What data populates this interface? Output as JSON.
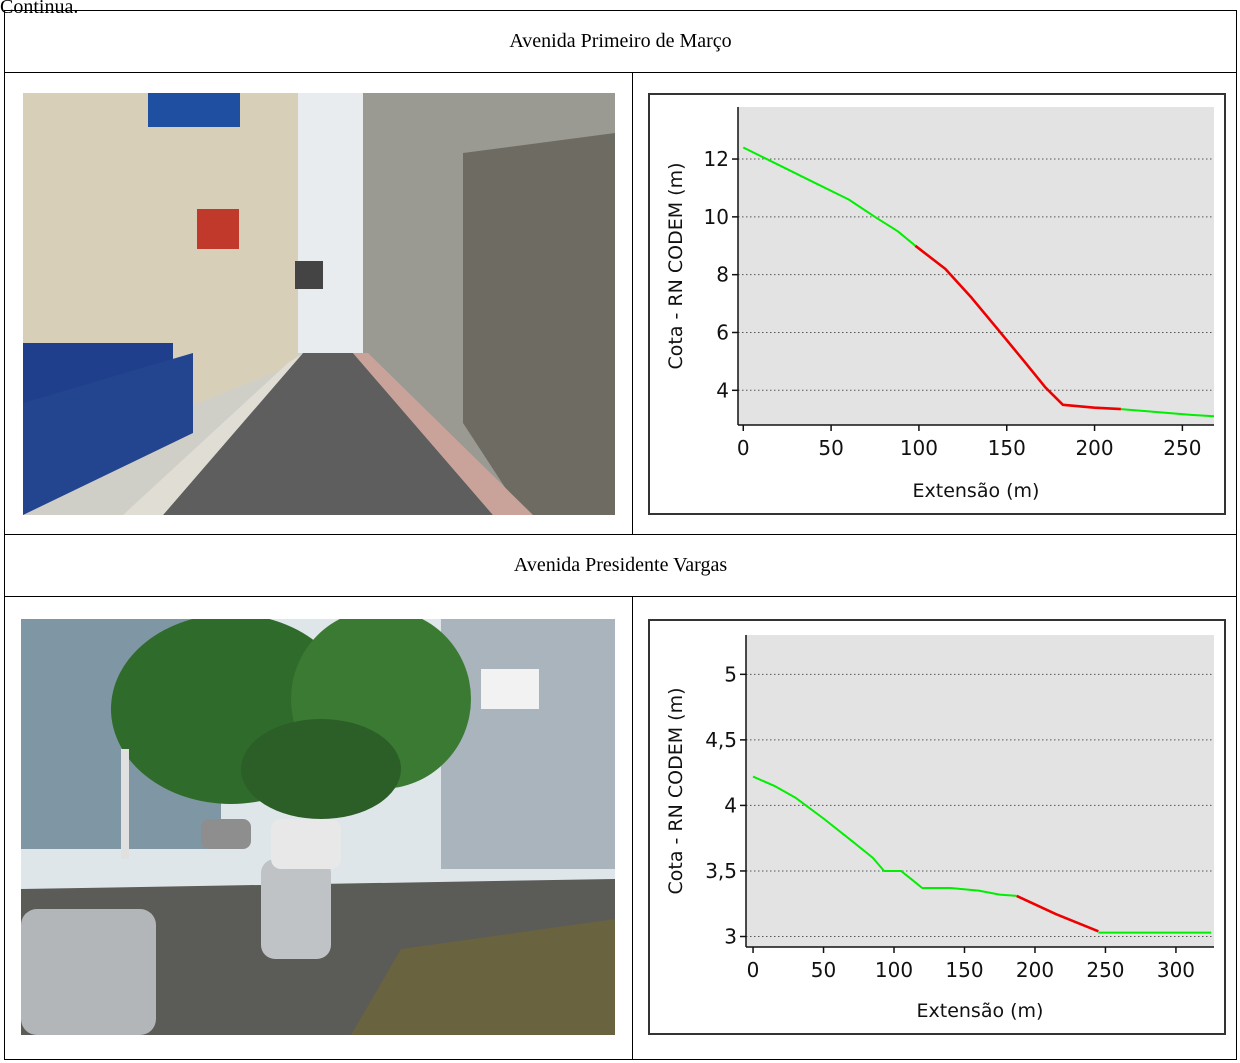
{
  "fragment_label": "Continua.",
  "rows": [
    {
      "title": "Avenida Primeiro de Março",
      "photo": {
        "kind": "narrow-street",
        "icon": "street-photo-icon"
      },
      "chart_data": {
        "type": "line",
        "xlabel": "Extensão (m)",
        "ylabel": "Cota - RN CODEM (m)",
        "xlim": [
          -3,
          268
        ],
        "ylim": [
          2.8,
          13.8
        ],
        "xticks": [
          0,
          50,
          100,
          150,
          200,
          250
        ],
        "xtick_labels": [
          "0",
          "50",
          "100",
          "150",
          "200",
          "250"
        ],
        "yticks": [
          4,
          6,
          8,
          10,
          12
        ],
        "ytick_labels": [
          "4",
          "6",
          "8",
          "10",
          "12"
        ],
        "grid": "horizontal-dotted",
        "background": "#e3e3e3",
        "segments": [
          {
            "color": "#00ee00",
            "points": [
              [
                0,
                12.4
              ],
              [
                20,
                11.8
              ],
              [
                40,
                11.2
              ],
              [
                60,
                10.6
              ],
              [
                75,
                10.0
              ],
              [
                88,
                9.5
              ],
              [
                98,
                9.0
              ]
            ]
          },
          {
            "color": "#ee0000",
            "points": [
              [
                98,
                9.0
              ],
              [
                115,
                8.2
              ],
              [
                130,
                7.2
              ],
              [
                145,
                6.1
              ],
              [
                160,
                5.0
              ],
              [
                172,
                4.1
              ],
              [
                182,
                3.5
              ],
              [
                200,
                3.4
              ],
              [
                215,
                3.35
              ]
            ]
          },
          {
            "color": "#00ee00",
            "points": [
              [
                215,
                3.35
              ],
              [
                235,
                3.25
              ],
              [
                255,
                3.15
              ],
              [
                268,
                3.1
              ]
            ]
          }
        ]
      }
    },
    {
      "title": "Avenida Presidente Vargas",
      "photo": {
        "kind": "wide-avenue",
        "icon": "street-photo-icon"
      },
      "chart_data": {
        "type": "line",
        "xlabel": "Extensão (m)",
        "ylabel": "Cota - RN CODEM (m)",
        "xlim": [
          -5,
          327
        ],
        "ylim": [
          2.92,
          5.3
        ],
        "xticks": [
          0,
          50,
          100,
          150,
          200,
          250,
          300
        ],
        "xtick_labels": [
          "0",
          "50",
          "100",
          "150",
          "200",
          "250",
          "300"
        ],
        "yticks": [
          3,
          3.5,
          4,
          4.5,
          5
        ],
        "ytick_labels": [
          "3",
          "3,5",
          "4",
          "4,5",
          "5"
        ],
        "grid": "horizontal-dotted",
        "background": "#e3e3e3",
        "segments": [
          {
            "color": "#00ee00",
            "points": [
              [
                0,
                4.22
              ],
              [
                15,
                4.15
              ],
              [
                30,
                4.06
              ],
              [
                50,
                3.9
              ],
              [
                70,
                3.73
              ],
              [
                85,
                3.6
              ],
              [
                93,
                3.5
              ],
              [
                105,
                3.5
              ],
              [
                112,
                3.44
              ],
              [
                120,
                3.37
              ],
              [
                140,
                3.37
              ],
              [
                160,
                3.35
              ],
              [
                175,
                3.32
              ],
              [
                187,
                3.31
              ]
            ]
          },
          {
            "color": "#ee0000",
            "points": [
              [
                187,
                3.31
              ],
              [
                215,
                3.17
              ],
              [
                245,
                3.04
              ]
            ]
          },
          {
            "color": "#00ee00",
            "points": [
              [
                245,
                3.03
              ],
              [
                270,
                3.03
              ],
              [
                300,
                3.03
              ],
              [
                325,
                3.03
              ]
            ]
          }
        ]
      }
    }
  ]
}
